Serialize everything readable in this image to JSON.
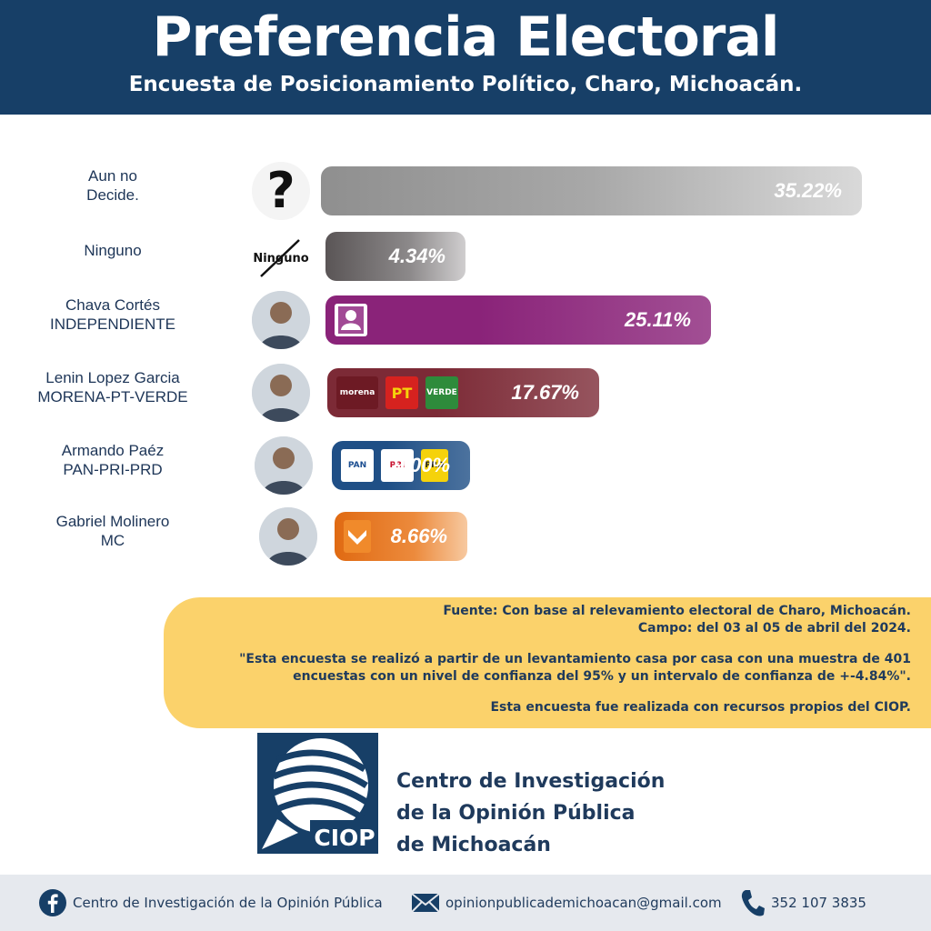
{
  "header": {
    "title": "Preferencia Electoral",
    "subtitle": "Encuesta de Posicionamiento Político, Charo, Michoacán."
  },
  "colors": {
    "header_bg": "#173f67",
    "source_bg": "#fbd26b",
    "footer_bg": "#e6e9ee"
  },
  "chart_data": {
    "type": "bar",
    "orientation": "horizontal",
    "categories": [
      "Aun no Decide.",
      "Ninguno",
      "Chava Cortés INDEPENDIENTE",
      "Lenin Lopez Garcia MORENA-PT-VERDE",
      "Armando Paéz PAN-PRI-PRD",
      "Gabriel Molinero MC"
    ],
    "values": [
      35.22,
      4.34,
      25.11,
      17.67,
      9.0,
      8.66
    ],
    "value_labels": [
      "35.22%",
      "4.34%",
      "25.11%",
      "17.67%",
      "9.00%",
      "8.66%"
    ],
    "title": "Preferencia Electoral",
    "subtitle": "Encuesta de Posicionamiento Político, Charo, Michoacán.",
    "bar_colors": [
      "#9a9a9a",
      "#6e6a6b",
      "#8a2379",
      "#7c2a36",
      "#1f4f86",
      "#e4761e"
    ],
    "rows": [
      {
        "name_line1": "Aun no",
        "name_line2": "Decide.",
        "value": 35.22,
        "label": "35.22%",
        "icon": "question-mark-icon",
        "parties": []
      },
      {
        "name_line1": "Ninguno",
        "name_line2": "",
        "value": 4.34,
        "label": "4.34%",
        "icon": "ninguno-crossed-icon",
        "icon_text": "Ninguno",
        "parties": []
      },
      {
        "name_line1": "Chava Cortés",
        "name_line2": "INDEPENDIENTE",
        "value": 25.11,
        "label": "25.11%",
        "icon": "candidate-photo",
        "parties": [
          {
            "icon": "independiente-logo",
            "text": ""
          }
        ]
      },
      {
        "name_line1": "Lenin Lopez Garcia",
        "name_line2": "MORENA-PT-VERDE",
        "value": 17.67,
        "label": "17.67%",
        "icon": "candidate-photo",
        "parties": [
          {
            "icon": "morena-logo",
            "text": "morena"
          },
          {
            "icon": "pt-logo",
            "text": "PT"
          },
          {
            "icon": "verde-logo",
            "text": "VERDE"
          }
        ]
      },
      {
        "name_line1": "Armando Paéz",
        "name_line2": "PAN-PRI-PRD",
        "value": 9.0,
        "label": "9.00%",
        "icon": "candidate-photo",
        "parties": [
          {
            "icon": "pan-logo",
            "text": "PAN"
          },
          {
            "icon": "pri-logo",
            "text": "PRI"
          },
          {
            "icon": "prd-logo",
            "text": "PRD"
          }
        ]
      },
      {
        "name_line1": "Gabriel Molinero",
        "name_line2": "MC",
        "value": 8.66,
        "label": "8.66%",
        "icon": "candidate-photo",
        "parties": [
          {
            "icon": "mc-logo",
            "text": ""
          }
        ]
      }
    ]
  },
  "source": {
    "line1": "Fuente: Con base al relevamiento electoral de Charo, Michoacán.",
    "line2": "Campo: del 03 al 05 de abril del 2024.",
    "line3": "\"Esta encuesta se realizó a partir de un levantamiento casa por casa con una muestra de 401",
    "line4": "encuestas con un nivel de confianza del 95% y un intervalo de confianza de +-4.84%\".",
    "line5": "Esta encuesta fue realizada con recursos propios del CIOP."
  },
  "org": {
    "logo_text": "CIOP",
    "name_line1": "Centro de Investigación",
    "name_line2": "de la Opinión Pública",
    "name_line3": "de Michoacán"
  },
  "footer": {
    "facebook": "Centro de Investigación de la Opinión Pública",
    "email": "opinionpublicademichoacan@gmail.com",
    "phone": "352 107 3835"
  }
}
